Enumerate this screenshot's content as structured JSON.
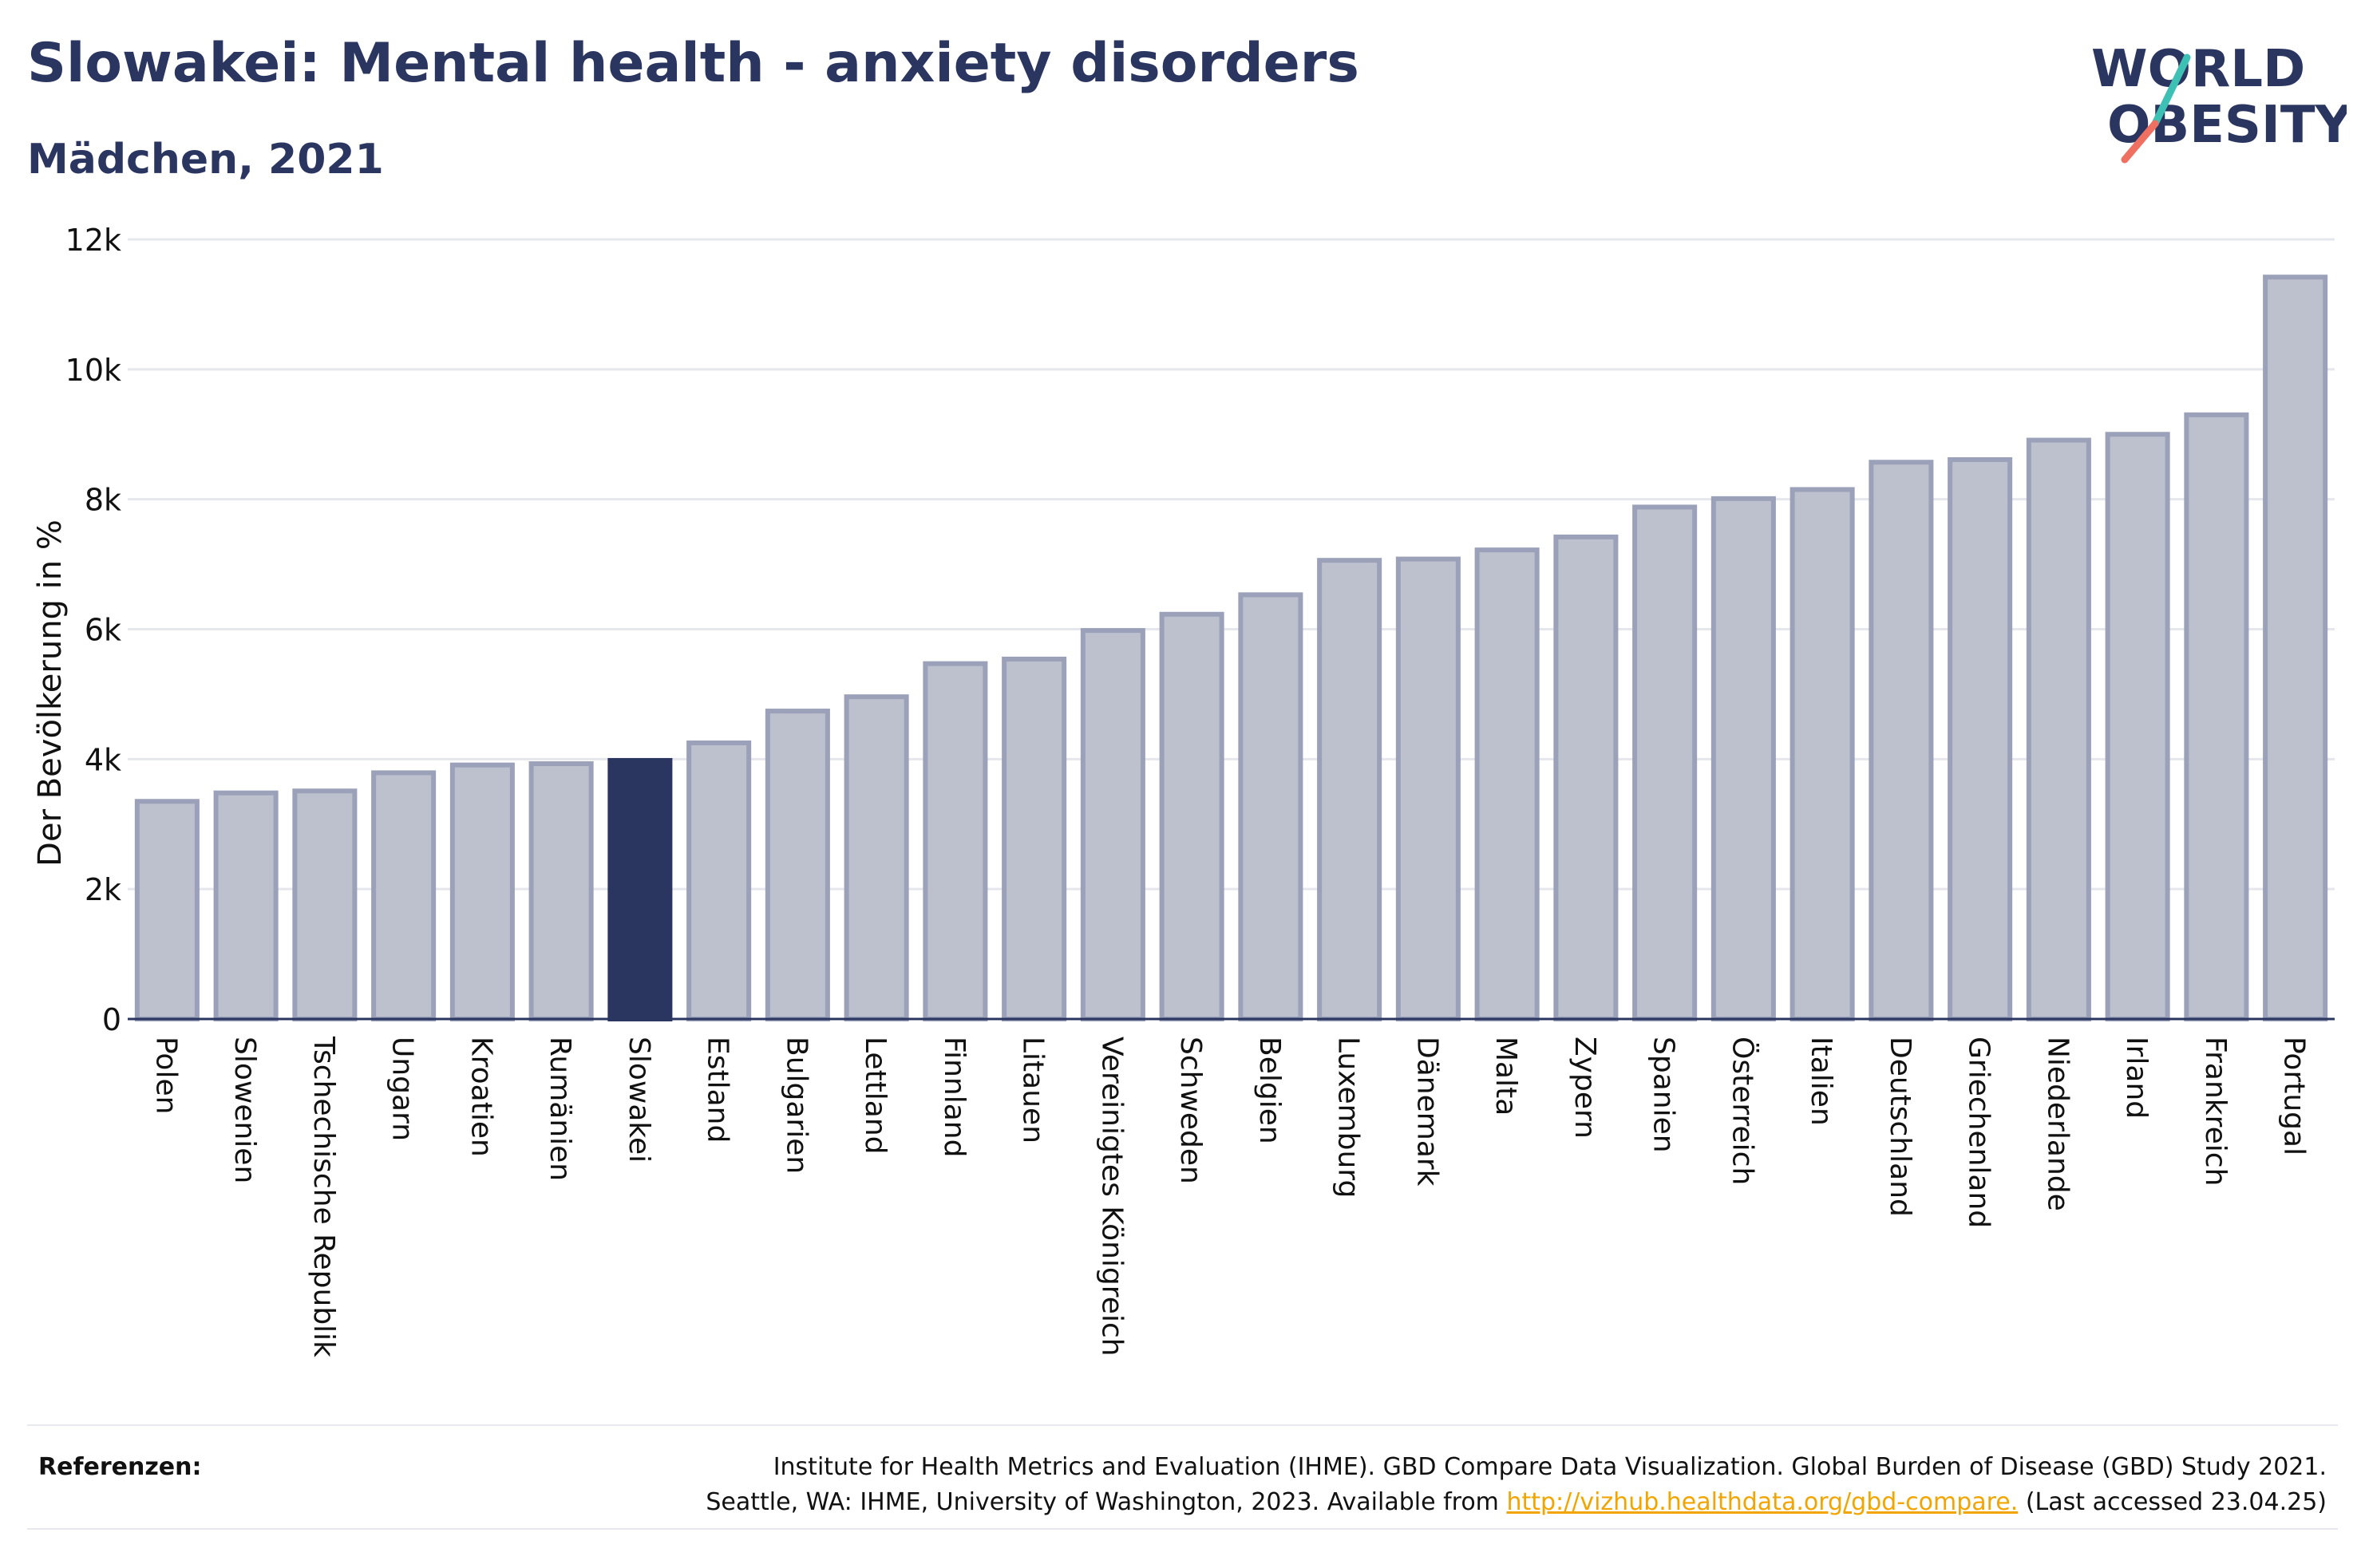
{
  "title": "Slowakei: Mental health - anxiety disorders",
  "subtitle": "Mädchen, 2021",
  "logo": {
    "line1": "WORLD",
    "line2": "OBESITY"
  },
  "colors": {
    "bar": "#bdc0cd",
    "bar_stroke": "#9ba1b8",
    "highlight": "#2a3560",
    "grid": "#e6e7ec",
    "accent_teal": "#3ec1b5",
    "accent_coral": "#ef6f61"
  },
  "chart_data": {
    "type": "bar",
    "ylabel": "Der Bevölkerung in %",
    "ylim": [
      0,
      12000
    ],
    "yticks": [
      0,
      2000,
      4000,
      6000,
      8000,
      10000,
      12000
    ],
    "ytick_labels": [
      "0",
      "2k",
      "4k",
      "6k",
      "8k",
      "10k",
      "12k"
    ],
    "highlight": "Slowakei",
    "categories": [
      "Polen",
      "Slowenien",
      "Tschechische Republik",
      "Ungarn",
      "Kroatien",
      "Rumänien",
      "Slowakei",
      "Estland",
      "Bulgarien",
      "Lettland",
      "Finnland",
      "Litauen",
      "Vereinigtes Königreich",
      "Schweden",
      "Belgien",
      "Luxemburg",
      "Dänemark",
      "Malta",
      "Zypern",
      "Spanien",
      "Österreich",
      "Italien",
      "Deutschland",
      "Griechenland",
      "Niederlande",
      "Irland",
      "Frankreich",
      "Portugal"
    ],
    "values": [
      3350,
      3480,
      3510,
      3790,
      3910,
      3930,
      3980,
      4250,
      4740,
      4960,
      5470,
      5540,
      5980,
      6230,
      6530,
      7060,
      7080,
      7220,
      7420,
      7880,
      8010,
      8150,
      8570,
      8610,
      8910,
      9000,
      9300,
      11420
    ]
  },
  "footer": {
    "label": "Referenzen:",
    "line1": "Institute for Health Metrics and Evaluation (IHME). GBD Compare Data Visualization. Global Burden of Disease (GBD) Study 2021.",
    "line2_prefix": "Seattle, WA: IHME, University of Washington, 2023. Available from ",
    "link": "http://vizhub.healthdata.org/gbd-compare.",
    "line2_suffix": " (Last accessed 23.04.25)"
  }
}
